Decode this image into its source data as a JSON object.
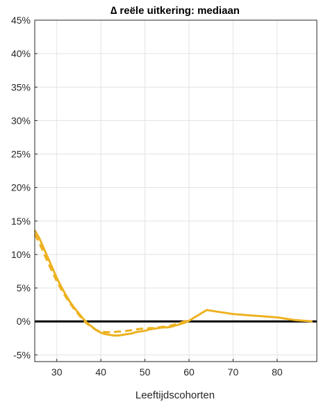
{
  "chart_data": {
    "type": "line",
    "title": "∆ reële uitkering: mediaan",
    "xlabel": "Leeftijdscohorten",
    "ylabel": "",
    "xlim": [
      25,
      89
    ],
    "ylim": [
      -6,
      45
    ],
    "x_ticks": [
      30,
      40,
      50,
      60,
      70,
      80
    ],
    "x_tick_labels": [
      "30",
      "40",
      "50",
      "60",
      "70",
      "80"
    ],
    "y_ticks": [
      -5,
      0,
      5,
      10,
      15,
      20,
      25,
      30,
      35,
      40,
      45
    ],
    "y_tick_labels": [
      "-5%",
      "0%",
      "5%",
      "10%",
      "15%",
      "20%",
      "25%",
      "30%",
      "35%",
      "40%",
      "45%"
    ],
    "grid": true,
    "legend": "none",
    "series": [
      {
        "style": "solid",
        "color": "#EDB120",
        "x": [
          25,
          26,
          27,
          28,
          29,
          30,
          31,
          32,
          33,
          34,
          35,
          36,
          37,
          38,
          39,
          40,
          41,
          42,
          43,
          44,
          45,
          46,
          47,
          48,
          49,
          50,
          51,
          52,
          53,
          54,
          55,
          56,
          57,
          58,
          59,
          60,
          61,
          62,
          63,
          64,
          65,
          66,
          67,
          68,
          69,
          70,
          71,
          72,
          73,
          74,
          75,
          76,
          77,
          78,
          79,
          80,
          81,
          82,
          83,
          84,
          85,
          86,
          87,
          88
        ],
        "values": [
          13.6,
          12.5,
          11.0,
          9.5,
          8.0,
          6.5,
          5.2,
          4.0,
          2.9,
          2.0,
          1.2,
          0.4,
          -0.3,
          -0.8,
          -1.3,
          -1.7,
          -1.9,
          -2.0,
          -2.1,
          -2.1,
          -2.0,
          -1.9,
          -1.8,
          -1.6,
          -1.5,
          -1.4,
          -1.2,
          -1.1,
          -1.0,
          -0.9,
          -0.9,
          -0.8,
          -0.6,
          -0.4,
          -0.2,
          0.1,
          0.5,
          0.9,
          1.3,
          1.7,
          1.6,
          1.5,
          1.4,
          1.3,
          1.2,
          1.1,
          1.05,
          1.0,
          0.95,
          0.9,
          0.85,
          0.8,
          0.75,
          0.7,
          0.65,
          0.6,
          0.5,
          0.4,
          0.3,
          0.2,
          0.15,
          0.1,
          0.05,
          0.0
        ]
      },
      {
        "style": "dashed",
        "color": "#EDB120",
        "x": [
          25,
          26,
          27,
          28,
          29,
          30,
          31,
          32,
          33,
          34,
          35,
          36,
          37,
          38,
          39,
          40,
          41,
          42,
          43,
          44,
          45,
          46,
          47,
          48,
          49,
          50,
          51,
          52,
          53,
          54,
          55,
          56,
          57,
          58,
          59,
          60
        ],
        "values": [
          13.0,
          11.8,
          10.3,
          8.8,
          7.4,
          6.0,
          4.8,
          3.7,
          2.7,
          1.8,
          1.0,
          0.2,
          -0.4,
          -0.9,
          -1.3,
          -1.5,
          -1.6,
          -1.6,
          -1.6,
          -1.5,
          -1.5,
          -1.4,
          -1.3,
          -1.2,
          -1.1,
          -1.1,
          -1.0,
          -1.0,
          -0.9,
          -0.8,
          -0.8,
          -0.6,
          -0.4,
          -0.2,
          0.0,
          0.2
        ]
      }
    ],
    "reference_line": {
      "y": 0,
      "color": "#000000"
    }
  }
}
